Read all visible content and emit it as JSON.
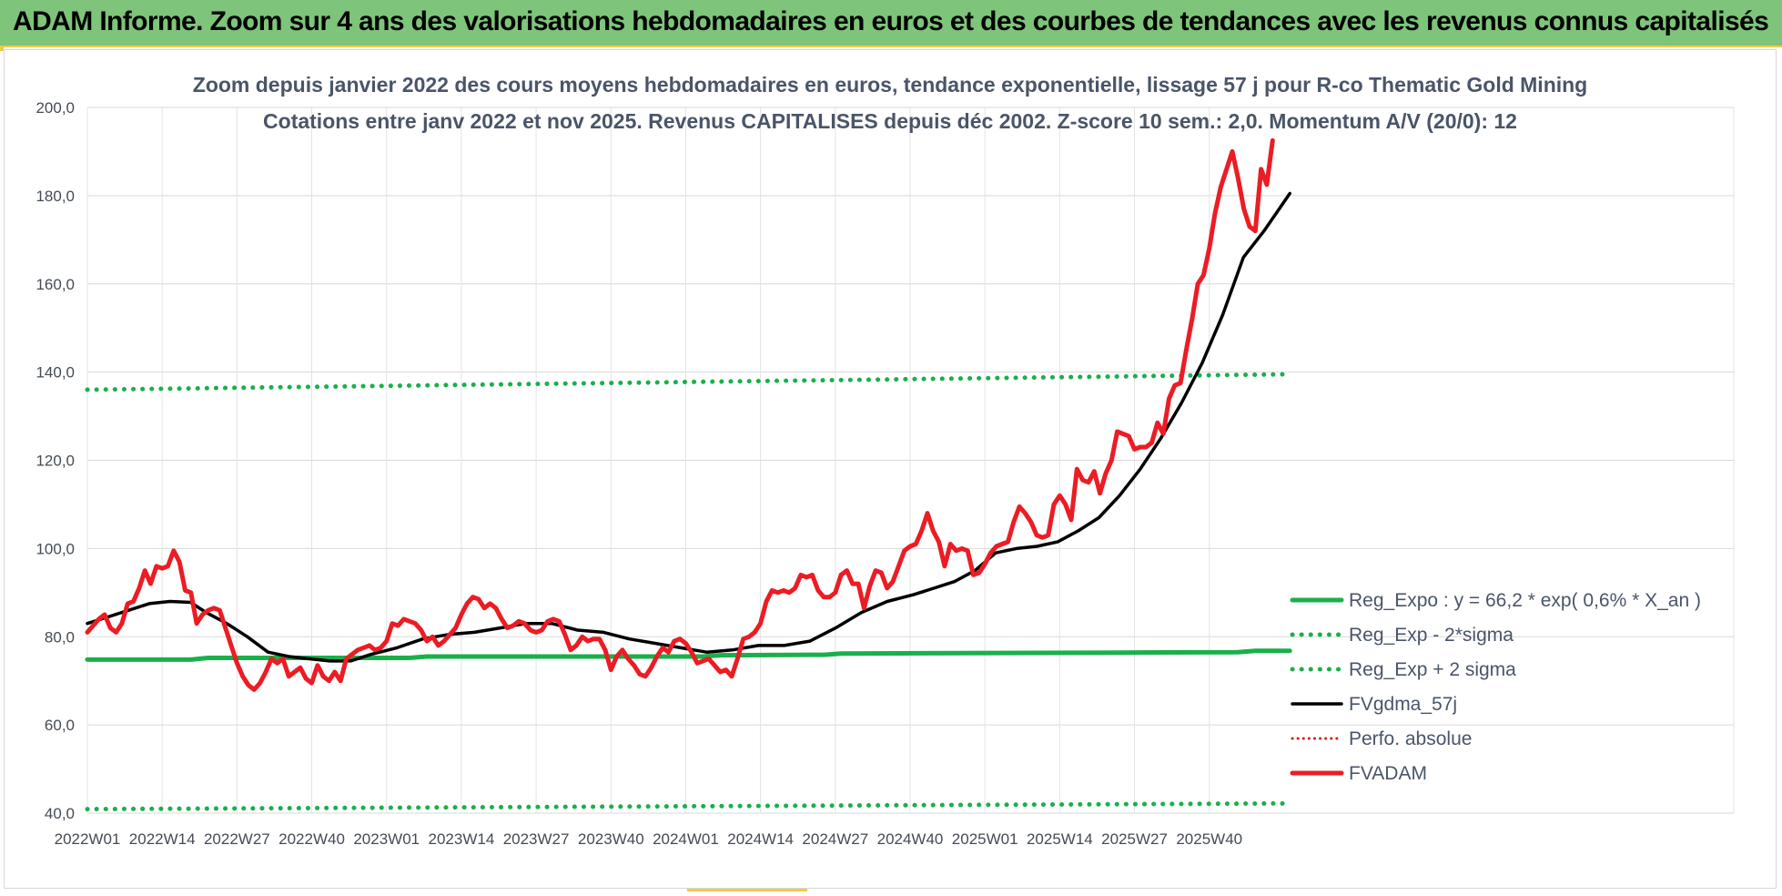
{
  "banner": {
    "title": "ADAM Informe. Zoom sur 4 ans des valorisations hebdomadaires en euros et des courbes de tendances avec les revenus connus capitalisés"
  },
  "colors": {
    "banner_bg": "#7ec47a",
    "reg_expo": "#19b04b",
    "sigma": "#19b04b",
    "fvgdma": "#000000",
    "perfo": "#d9201a",
    "fvadam": "#ec1c24"
  },
  "chart_data": {
    "type": "line",
    "title_lines": [
      "Zoom depuis janvier 2022 des cours moyens hebdomadaires en euros, tendance exponentielle, lissage 57 j pour R-co Thematic Gold Mining",
      "Cotations entre janv 2022 et nov 2025. Revenus CAPITALISES depuis déc 2002. Z-score 10 sem.: 2,0. Momentum A/V (20/0): 12"
    ],
    "ylim": [
      40,
      200
    ],
    "y_ticks": [
      "40,0",
      "60,0",
      "80,0",
      "100,0",
      "120,0",
      "140,0",
      "160,0",
      "180,0",
      "200,0"
    ],
    "x_ticks": [
      "2022W01",
      "2022W14",
      "2022W27",
      "2022W40",
      "2023W01",
      "2023W14",
      "2023W27",
      "2023W40",
      "2024W01",
      "2024W14",
      "2024W27",
      "2024W40",
      "2025W01",
      "2025W14",
      "2025W27",
      "2025W40"
    ],
    "x_tick_step_weeks": 13,
    "n_weeks": 210,
    "grid": true,
    "legend_position": "right",
    "series": [
      {
        "name": "Reg_Expo : y = 66,2 * exp( 0,6% *  X_an )",
        "style": "solid",
        "width": 5,
        "color": "#19b04b",
        "points": [
          [
            0,
            74.8
          ],
          [
            18,
            74.8
          ],
          [
            21,
            75.2
          ],
          [
            56,
            75.2
          ],
          [
            59,
            75.5
          ],
          [
            107,
            75.5
          ],
          [
            110,
            75.8
          ],
          [
            128,
            75.9
          ],
          [
            131,
            76.2
          ],
          [
            180,
            76.4
          ],
          [
            200,
            76.5
          ],
          [
            203,
            76.8
          ],
          [
            209,
            76.8
          ]
        ]
      },
      {
        "name": "Reg_Exp - 2*sigma",
        "style": "dotted",
        "width": 5,
        "color": "#19b04b",
        "points": [
          [
            0,
            40.9
          ],
          [
            209,
            42.2
          ]
        ]
      },
      {
        "name": "Reg_Exp + 2 sigma",
        "style": "dotted",
        "width": 5,
        "color": "#19b04b",
        "points": [
          [
            0,
            136.0
          ],
          [
            209,
            139.5
          ]
        ]
      },
      {
        "name": "FVgdma_57j",
        "style": "solid",
        "width": 3.5,
        "color": "#000000",
        "points": [
          [
            0,
            83.0
          ],
          [
            4,
            84.5
          ],
          [
            8,
            86.0
          ],
          [
            12,
            87.5
          ],
          [
            16,
            88.0
          ],
          [
            20,
            87.8
          ],
          [
            23,
            85.5
          ],
          [
            27,
            83.0
          ],
          [
            31,
            80.0
          ],
          [
            35,
            76.5
          ],
          [
            39,
            75.5
          ],
          [
            43,
            75.0
          ],
          [
            47,
            74.5
          ],
          [
            51,
            74.5
          ],
          [
            55,
            76.0
          ],
          [
            60,
            77.5
          ],
          [
            65,
            79.5
          ],
          [
            70,
            80.5
          ],
          [
            75,
            81.0
          ],
          [
            80,
            82.0
          ],
          [
            85,
            83.0
          ],
          [
            90,
            83.0
          ],
          [
            95,
            81.5
          ],
          [
            100,
            81.0
          ],
          [
            105,
            79.5
          ],
          [
            110,
            78.5
          ],
          [
            115,
            77.5
          ],
          [
            120,
            76.5
          ],
          [
            125,
            77.0
          ],
          [
            130,
            78.0
          ],
          [
            135,
            78.0
          ],
          [
            140,
            79.0
          ],
          [
            145,
            82.0
          ],
          [
            150,
            85.5
          ],
          [
            155,
            88.0
          ],
          [
            160,
            89.5
          ],
          [
            164,
            91.0
          ],
          [
            168,
            92.5
          ],
          [
            172,
            95.0
          ],
          [
            176,
            99.0
          ],
          [
            180,
            100.0
          ],
          [
            184,
            100.5
          ],
          [
            188,
            101.5
          ],
          [
            192,
            104.0
          ],
          [
            196,
            107.0
          ],
          [
            200,
            112.0
          ],
          [
            204,
            118.0
          ],
          [
            208,
            125.0
          ],
          [
            212,
            133.0
          ],
          [
            216,
            142.0
          ],
          [
            220,
            153.0
          ],
          [
            224,
            166.0
          ],
          [
            228,
            172.0
          ],
          [
            233,
            180.5
          ]
        ],
        "x_scale": 0.897
      },
      {
        "name": "Perfo. absolue",
        "style": "dotted",
        "width": 3,
        "color": "#d9201a",
        "points": []
      },
      {
        "name": "FVADAM",
        "style": "solid",
        "width": 5,
        "color": "#ec1c24",
        "points": [
          [
            0,
            81.0
          ],
          [
            2,
            84.0
          ],
          [
            3,
            85.0
          ],
          [
            4,
            82.0
          ],
          [
            5,
            81.0
          ],
          [
            6,
            83.0
          ],
          [
            7,
            87.5
          ],
          [
            8,
            88.0
          ],
          [
            9,
            91.0
          ],
          [
            10,
            95.0
          ],
          [
            11,
            92.0
          ],
          [
            12,
            96.0
          ],
          [
            13,
            95.5
          ],
          [
            14,
            96.0
          ],
          [
            15,
            99.5
          ],
          [
            16,
            97.0
          ],
          [
            17,
            90.5
          ],
          [
            18,
            90.0
          ],
          [
            19,
            83.0
          ],
          [
            20,
            85.0
          ],
          [
            21,
            86.0
          ],
          [
            22,
            86.5
          ],
          [
            23,
            86.0
          ],
          [
            24,
            82.0
          ],
          [
            25,
            78.0
          ],
          [
            26,
            74.0
          ],
          [
            27,
            71.0
          ],
          [
            28,
            69.0
          ],
          [
            29,
            68.0
          ],
          [
            30,
            69.5
          ],
          [
            31,
            72.0
          ],
          [
            32,
            75.0
          ],
          [
            33,
            74.0
          ],
          [
            34,
            75.0
          ],
          [
            35,
            71.0
          ],
          [
            36,
            72.0
          ],
          [
            37,
            73.0
          ],
          [
            38,
            70.5
          ],
          [
            39,
            69.5
          ],
          [
            40,
            73.5
          ],
          [
            41,
            71.0
          ],
          [
            42,
            70.0
          ],
          [
            43,
            72.0
          ],
          [
            44,
            70.0
          ],
          [
            45,
            75.0
          ],
          [
            46,
            76.0
          ],
          [
            47,
            77.0
          ],
          [
            48,
            77.5
          ],
          [
            49,
            78.0
          ],
          [
            50,
            77.0
          ],
          [
            51,
            77.5
          ],
          [
            52,
            79.0
          ],
          [
            53,
            83.0
          ],
          [
            54,
            82.5
          ],
          [
            55,
            84.0
          ],
          [
            56,
            83.5
          ],
          [
            57,
            83.0
          ],
          [
            58,
            81.5
          ],
          [
            59,
            79.0
          ],
          [
            60,
            80.0
          ],
          [
            61,
            78.0
          ],
          [
            62,
            79.0
          ],
          [
            63,
            80.5
          ],
          [
            64,
            82.0
          ],
          [
            65,
            85.0
          ],
          [
            66,
            87.5
          ],
          [
            67,
            89.0
          ],
          [
            68,
            88.5
          ],
          [
            69,
            86.5
          ],
          [
            70,
            87.5
          ],
          [
            71,
            86.5
          ],
          [
            72,
            84.0
          ],
          [
            73,
            82.0
          ],
          [
            74,
            82.5
          ],
          [
            75,
            83.5
          ],
          [
            76,
            83.0
          ],
          [
            77,
            81.5
          ],
          [
            78,
            81.0
          ],
          [
            79,
            81.5
          ],
          [
            80,
            83.5
          ],
          [
            81,
            84.0
          ],
          [
            82,
            83.5
          ],
          [
            83,
            80.5
          ],
          [
            84,
            77.0
          ],
          [
            85,
            78.0
          ],
          [
            86,
            80.0
          ],
          [
            87,
            79.0
          ],
          [
            88,
            79.5
          ],
          [
            89,
            79.5
          ],
          [
            90,
            77.0
          ],
          [
            91,
            72.5
          ],
          [
            92,
            75.5
          ],
          [
            93,
            77.0
          ],
          [
            94,
            75.0
          ],
          [
            95,
            73.5
          ],
          [
            96,
            71.5
          ],
          [
            97,
            71.0
          ],
          [
            98,
            73.0
          ],
          [
            99,
            75.5
          ],
          [
            100,
            77.5
          ],
          [
            101,
            76.5
          ],
          [
            102,
            79.0
          ],
          [
            103,
            79.5
          ],
          [
            104,
            78.5
          ],
          [
            105,
            76.5
          ],
          [
            106,
            74.0
          ],
          [
            107,
            74.5
          ],
          [
            108,
            75.0
          ],
          [
            109,
            73.5
          ],
          [
            110,
            72.0
          ],
          [
            111,
            72.5
          ],
          [
            112,
            71.0
          ],
          [
            113,
            75.0
          ],
          [
            114,
            79.5
          ],
          [
            115,
            80.0
          ],
          [
            116,
            81.0
          ],
          [
            117,
            83.0
          ],
          [
            118,
            88.0
          ],
          [
            119,
            90.5
          ],
          [
            120,
            90.0
          ],
          [
            121,
            90.5
          ],
          [
            122,
            90.0
          ],
          [
            123,
            91.0
          ],
          [
            124,
            94.0
          ],
          [
            125,
            93.5
          ],
          [
            126,
            94.0
          ],
          [
            127,
            90.5
          ],
          [
            128,
            89.0
          ],
          [
            129,
            89.0
          ],
          [
            130,
            90.0
          ],
          [
            131,
            94.0
          ],
          [
            132,
            95.0
          ],
          [
            133,
            92.0
          ],
          [
            134,
            92.0
          ],
          [
            135,
            86.5
          ],
          [
            136,
            91.5
          ],
          [
            137,
            95.0
          ],
          [
            138,
            94.5
          ],
          [
            139,
            91.0
          ],
          [
            140,
            92.5
          ],
          [
            141,
            96.0
          ],
          [
            142,
            99.5
          ],
          [
            143,
            100.5
          ],
          [
            144,
            101.0
          ],
          [
            145,
            104.0
          ],
          [
            146,
            108.0
          ],
          [
            147,
            104.0
          ],
          [
            148,
            101.5
          ],
          [
            149,
            96.0
          ],
          [
            150,
            101.0
          ],
          [
            151,
            99.5
          ],
          [
            152,
            100.0
          ],
          [
            153,
            99.5
          ],
          [
            154,
            94.0
          ],
          [
            155,
            94.5
          ],
          [
            156,
            96.5
          ],
          [
            157,
            99.0
          ],
          [
            158,
            100.5
          ],
          [
            159,
            101.0
          ],
          [
            160,
            101.5
          ],
          [
            161,
            106.0
          ],
          [
            162,
            109.5
          ],
          [
            163,
            108.0
          ],
          [
            164,
            106.0
          ],
          [
            165,
            103.0
          ],
          [
            166,
            102.5
          ],
          [
            167,
            103.0
          ],
          [
            168,
            110.0
          ],
          [
            169,
            112.0
          ],
          [
            170,
            110.0
          ],
          [
            171,
            106.5
          ],
          [
            172,
            118.0
          ],
          [
            173,
            115.5
          ],
          [
            174,
            115.0
          ],
          [
            175,
            117.5
          ],
          [
            176,
            112.5
          ],
          [
            177,
            117.0
          ],
          [
            178,
            120.0
          ],
          [
            179,
            126.5
          ],
          [
            180,
            126.0
          ],
          [
            181,
            125.5
          ],
          [
            182,
            122.5
          ],
          [
            183,
            123.0
          ],
          [
            184,
            123.0
          ],
          [
            185,
            124.0
          ],
          [
            186,
            128.5
          ],
          [
            187,
            126.0
          ],
          [
            188,
            134.0
          ],
          [
            189,
            137.0
          ],
          [
            190,
            137.5
          ],
          [
            191,
            145.0
          ],
          [
            192,
            152.0
          ],
          [
            193,
            160.0
          ],
          [
            194,
            162.0
          ],
          [
            195,
            168.0
          ],
          [
            196,
            176.0
          ],
          [
            197,
            182.0
          ],
          [
            198,
            186.0
          ],
          [
            199,
            190.0
          ],
          [
            200,
            184.0
          ],
          [
            201,
            177.0
          ],
          [
            202,
            173.0
          ],
          [
            203,
            172.0
          ],
          [
            204,
            186.0
          ],
          [
            205,
            182.5
          ],
          [
            206,
            192.5
          ]
        ]
      }
    ]
  }
}
